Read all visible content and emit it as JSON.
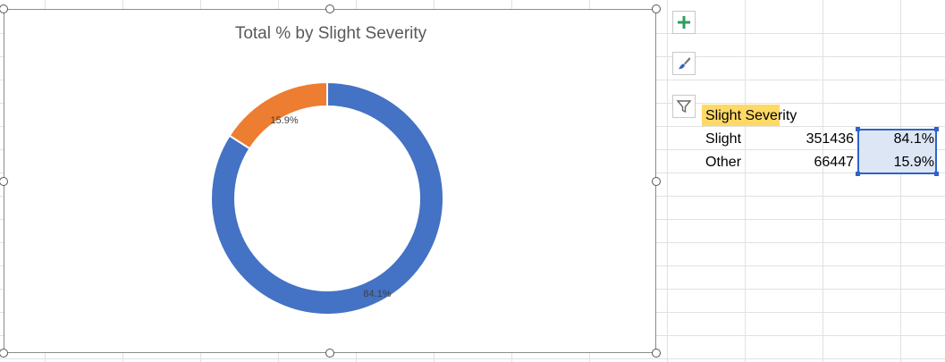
{
  "chart_data": {
    "type": "pie",
    "title": "Total % by Slight Severity",
    "labels": [
      "Slight",
      "Other"
    ],
    "values": [
      84.1,
      15.9
    ],
    "data_labels": [
      "84.1%",
      "15.9%"
    ],
    "colors": [
      "#4472c4",
      "#ed7d31"
    ],
    "donut": true
  },
  "chart_tools": {
    "elements_icon": "plus-icon",
    "styles_icon": "paintbrush-icon",
    "filter_icon": "funnel-icon"
  },
  "table": {
    "header": "Slight Severity",
    "rows": [
      {
        "label": "Slight",
        "count": "351436",
        "pct": "84.1%"
      },
      {
        "label": "Other",
        "count": "66447",
        "pct": "15.9%"
      }
    ]
  }
}
